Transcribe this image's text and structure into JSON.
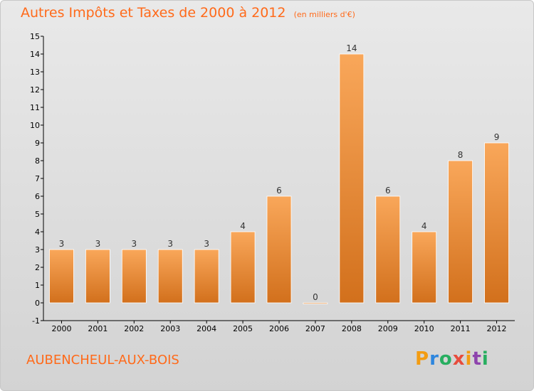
{
  "chart_data": {
    "type": "bar",
    "title": "Autres Impôts et Taxes de 2000 à 2012",
    "subtitle": "(en milliers d'€)",
    "categories": [
      "2000",
      "2001",
      "2002",
      "2003",
      "2004",
      "2005",
      "2006",
      "2007",
      "2008",
      "2009",
      "2010",
      "2011",
      "2012"
    ],
    "values": [
      3,
      3,
      3,
      3,
      3,
      4,
      6,
      0,
      14,
      6,
      4,
      8,
      9
    ],
    "ylim": [
      -1,
      15
    ],
    "yticks": [
      -1,
      0,
      1,
      2,
      3,
      4,
      5,
      6,
      7,
      8,
      9,
      10,
      11,
      12,
      13,
      14,
      15
    ],
    "ytick_labels": [
      "-1",
      "0",
      "1",
      "2",
      "3",
      "4",
      "5",
      "6",
      "7",
      "8",
      "9",
      "10",
      "11",
      "12",
      "13",
      "14",
      "15"
    ],
    "grid": false,
    "bar_color_top": "#f9a75a",
    "bar_color_bottom": "#d2701c"
  },
  "footer": {
    "commune": "AUBENCHEUL-AUX-BOIS",
    "brand_letters": [
      "P",
      "r",
      "o",
      "x",
      "i",
      "t",
      "i"
    ],
    "brand_colors": [
      "#f39c12",
      "#2e86de",
      "#27ae60",
      "#e74c3c",
      "#f39c12",
      "#8e44ad",
      "#27ae60"
    ]
  },
  "colors": {
    "accent": "#ff6a1a",
    "axis": "#000000"
  }
}
